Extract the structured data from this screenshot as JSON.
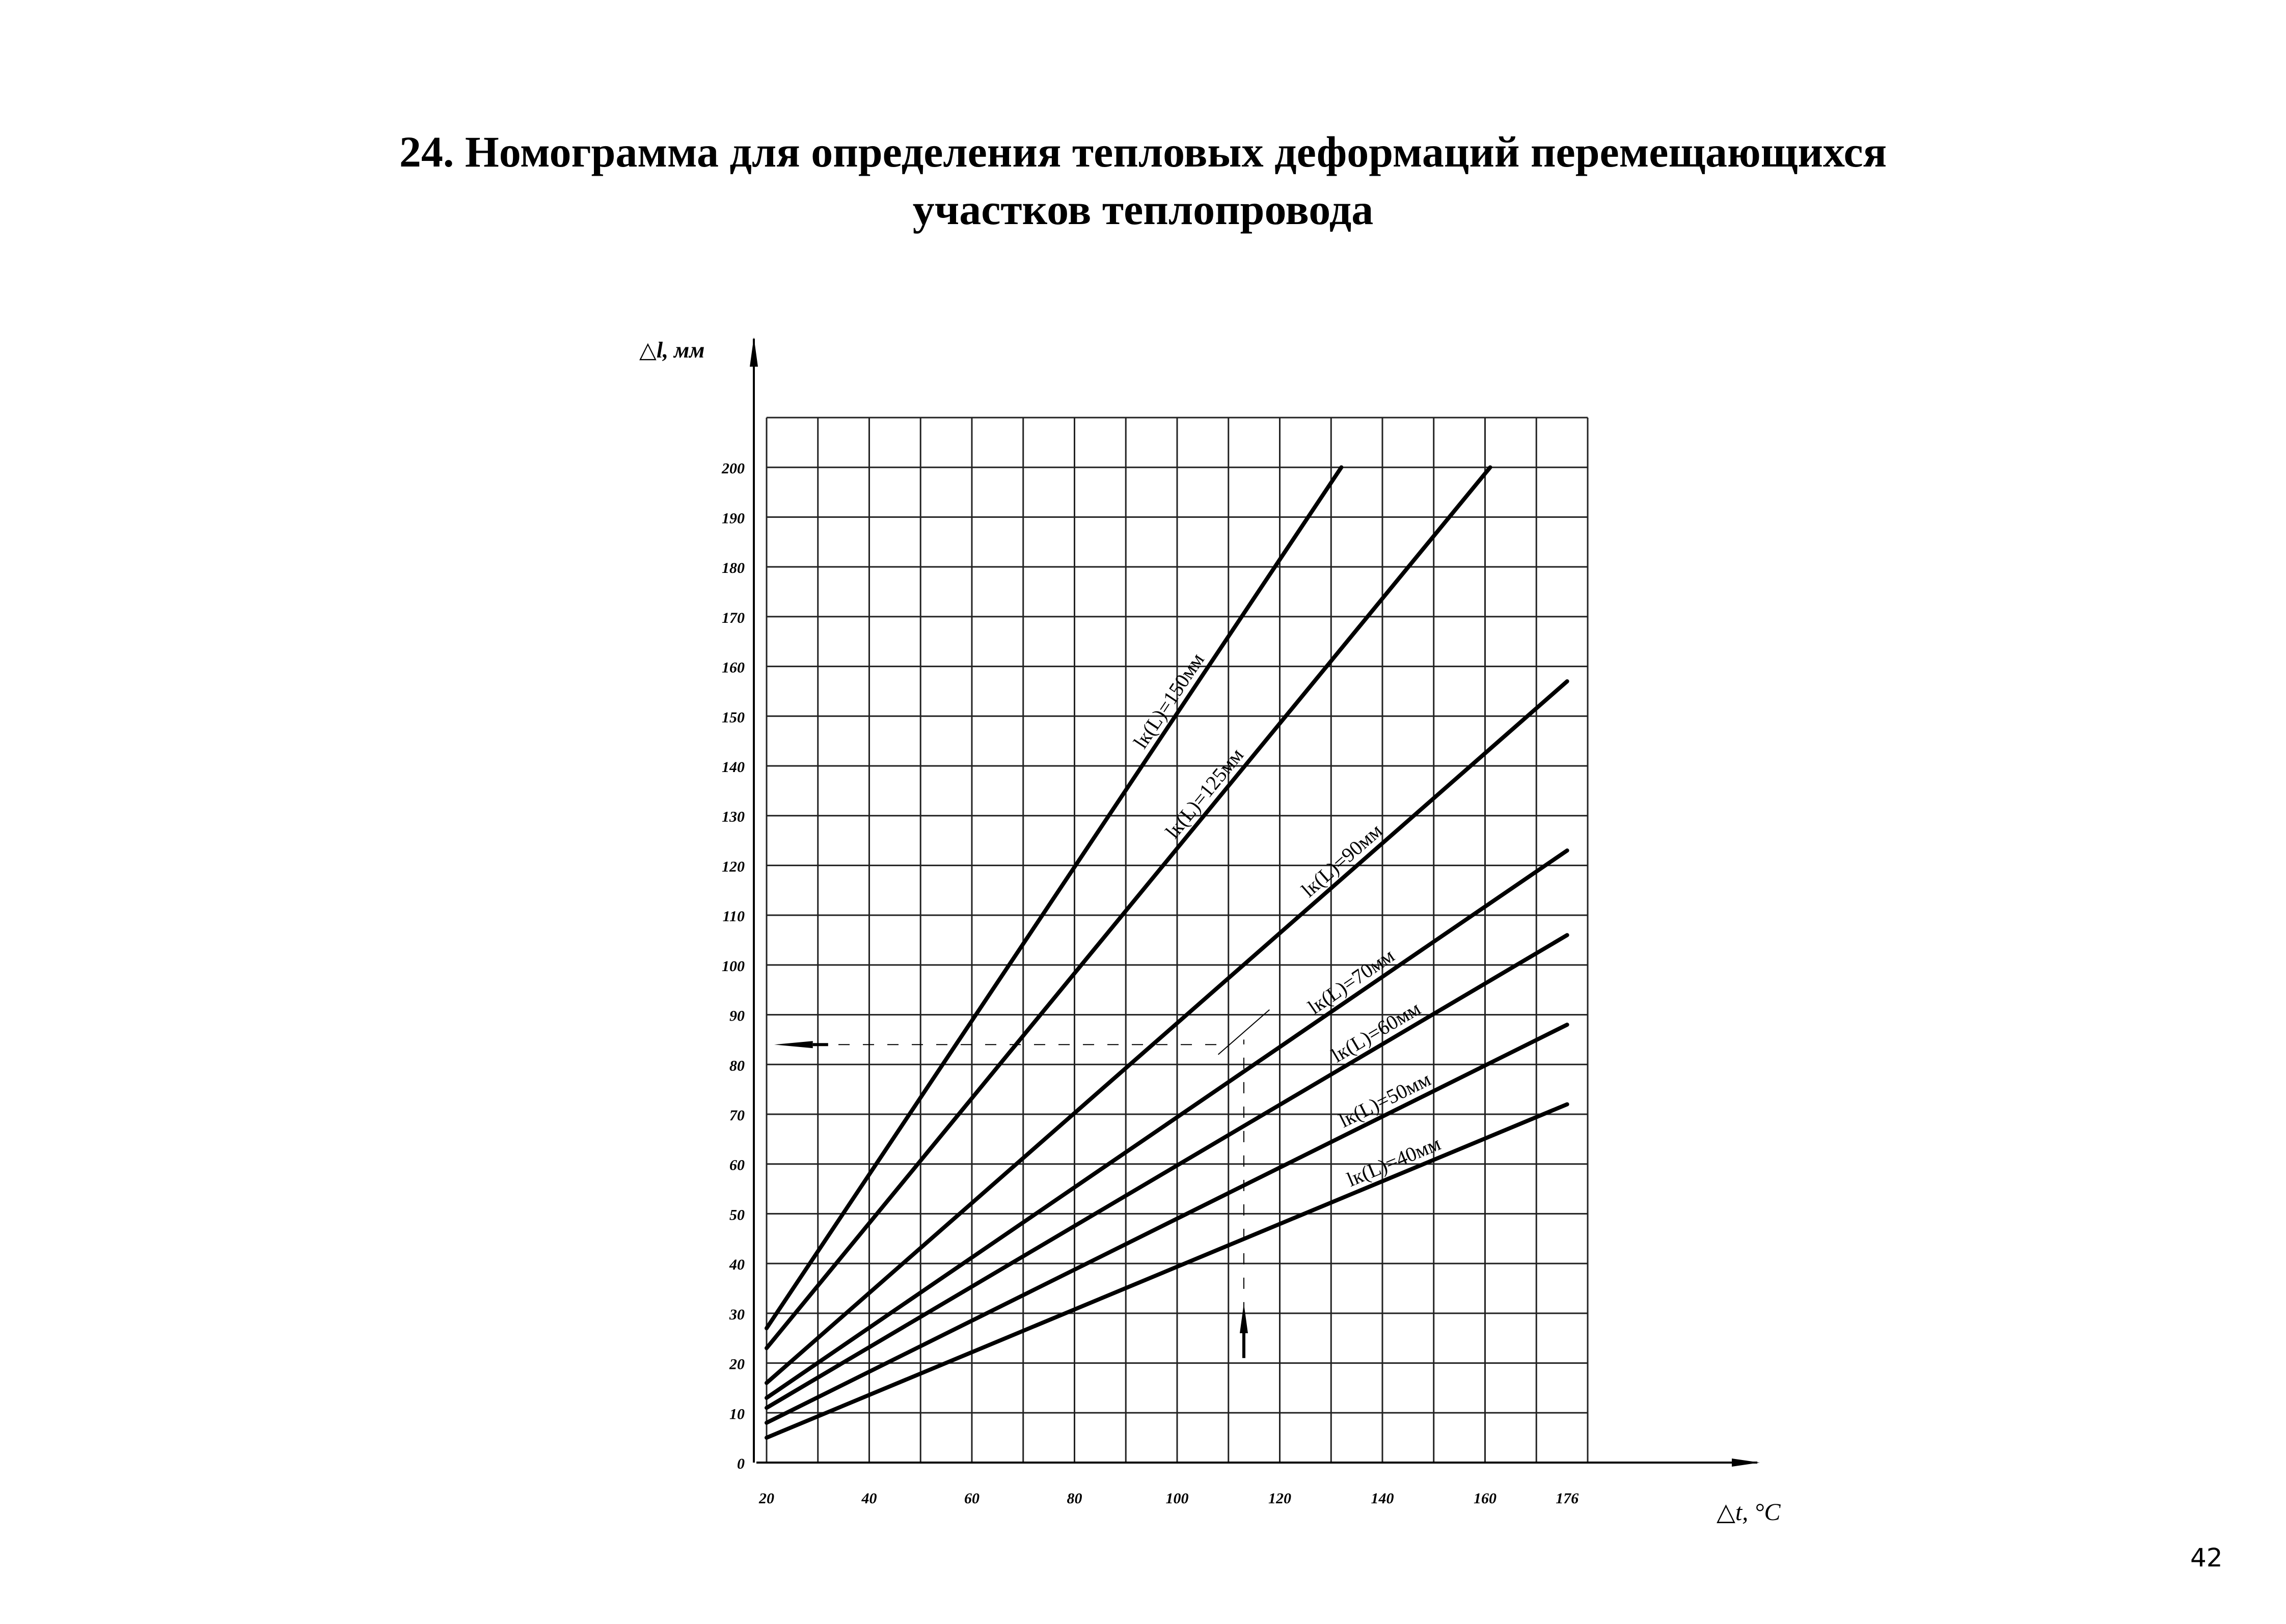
{
  "title": {
    "line1": "24. Номограмма для определения тепловых деформаций перемещающихся",
    "line2": "участков теплопровода"
  },
  "page_number": "42",
  "chart_data": {
    "type": "line",
    "xlabel": "△t, °C",
    "ylabel": "△l, мм",
    "xlim": [
      20,
      180
    ],
    "ylim": [
      0,
      210
    ],
    "x_ticks": [
      20,
      40,
      60,
      80,
      100,
      120,
      140,
      160,
      176
    ],
    "y_ticks": [
      0,
      10,
      20,
      30,
      40,
      50,
      60,
      70,
      80,
      90,
      100,
      110,
      120,
      130,
      140,
      150,
      160,
      170,
      180,
      190,
      200
    ],
    "grid": true,
    "series": [
      {
        "name": "lк(L)=150мм",
        "x": [
          20,
          132
        ],
        "y": [
          27,
          200
        ]
      },
      {
        "name": "lк(L)=125мм",
        "x": [
          20,
          161
        ],
        "y": [
          23,
          200
        ]
      },
      {
        "name": "lк(L)=90мм",
        "x": [
          20,
          176
        ],
        "y": [
          16,
          157
        ]
      },
      {
        "name": "lк(L)=70мм",
        "x": [
          20,
          176
        ],
        "y": [
          13,
          123
        ]
      },
      {
        "name": "lк(L)=60мм",
        "x": [
          20,
          176
        ],
        "y": [
          11,
          106
        ]
      },
      {
        "name": "lк(L)=50мм",
        "x": [
          20,
          176
        ],
        "y": [
          8,
          88
        ]
      },
      {
        "name": "lк(L)=40мм",
        "x": [
          20,
          176
        ],
        "y": [
          5,
          72
        ]
      }
    ]
  }
}
